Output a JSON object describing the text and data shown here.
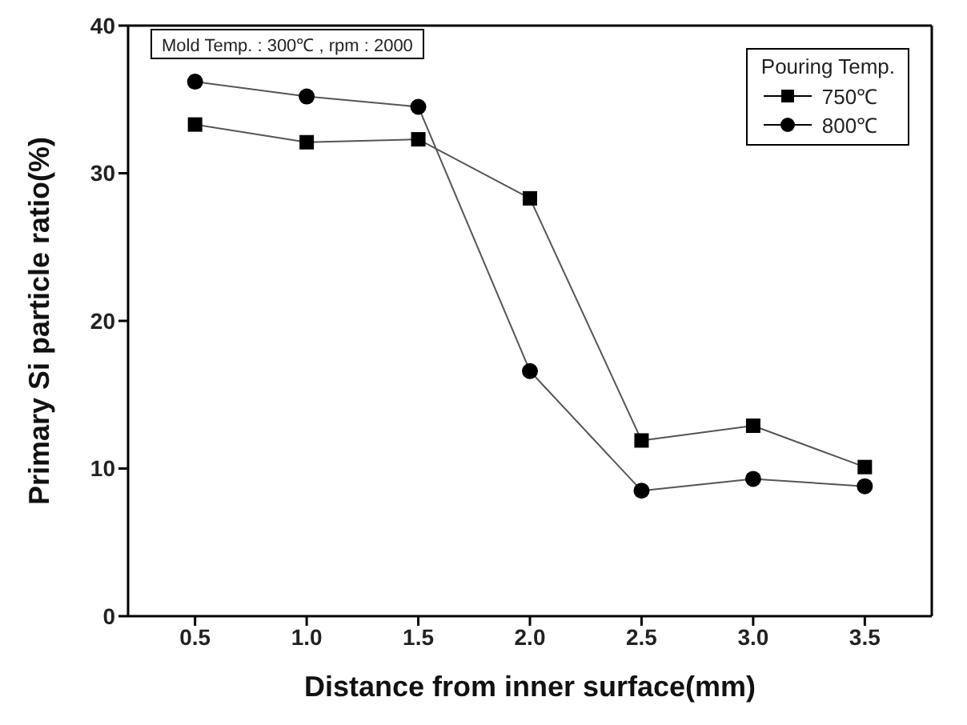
{
  "chart_data": {
    "type": "line",
    "xlabel": "Distance from inner surface(mm)",
    "ylabel": "Primary Si particle ratio(%)",
    "legend_title": "Pouring Temp.",
    "x": [
      0.5,
      1.0,
      1.5,
      2.0,
      2.5,
      3.0,
      3.5
    ],
    "series": [
      {
        "name": "750℃",
        "color": "#000000",
        "marker": "square",
        "values": [
          33.3,
          32.1,
          32.3,
          28.3,
          11.9,
          12.9,
          10.1
        ]
      },
      {
        "name": "800℃",
        "color": "#000000",
        "marker": "circle",
        "values": [
          36.2,
          35.2,
          34.5,
          16.6,
          8.5,
          9.3,
          8.8
        ]
      }
    ],
    "xlim": [
      0.2,
      3.8
    ],
    "xticks": [
      0.5,
      {
        "value": 1,
        "label": "1.0"
      },
      1.5,
      {
        "value": 2,
        "label": "2.0"
      },
      2.5,
      {
        "value": 3,
        "label": "3.0"
      },
      3.5
    ],
    "ylim": [
      0,
      40
    ],
    "yticks": [
      0,
      10,
      20,
      30,
      40
    ],
    "annotations": [
      "Mold Temp. : 300℃ , rpm : 2000"
    ],
    "legend": "top right",
    "grid": false,
    "line_style": "solid"
  }
}
